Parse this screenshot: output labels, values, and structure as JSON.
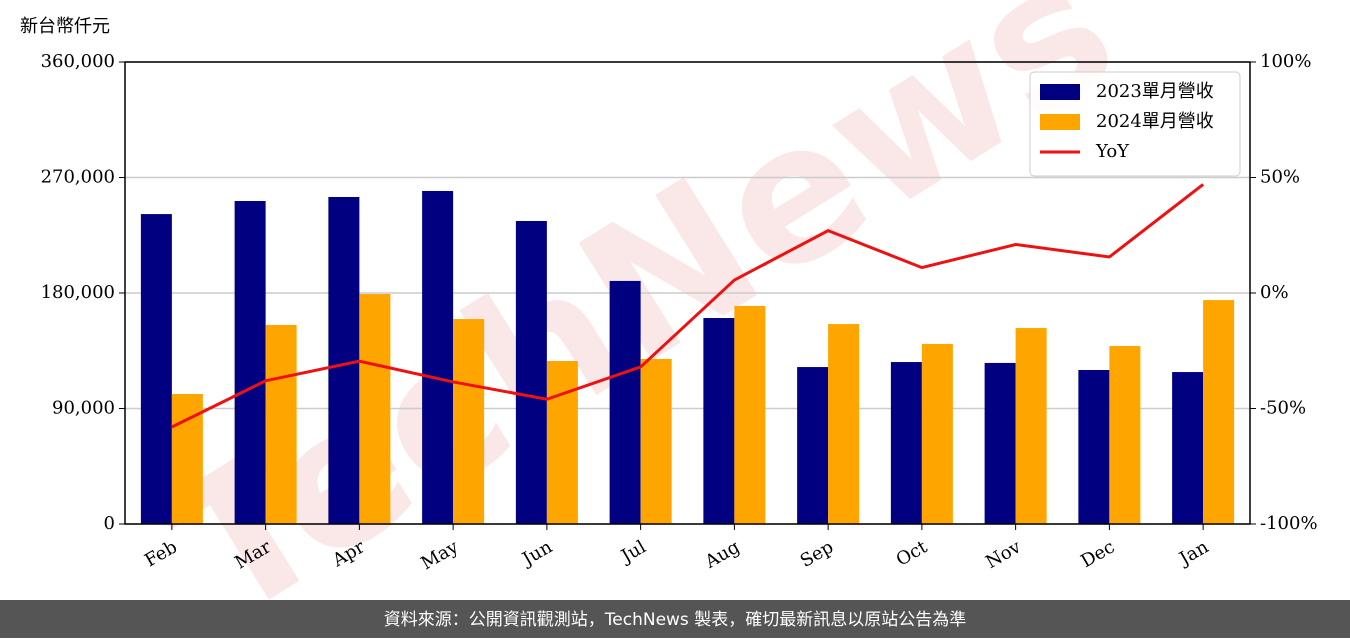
{
  "chart_data": {
    "type": "bar",
    "ylabel": "新台幣仟元",
    "watermark": "TechNews",
    "source": "資料來源：公開資訊觀測站，TechNews 製表，確切最新訊息以原站公告為準",
    "categories": [
      "Feb",
      "Mar",
      "Apr",
      "May",
      "Jun",
      "Jul",
      "Aug",
      "Sep",
      "Oct",
      "Nov",
      "Dec",
      "Jan"
    ],
    "series": [
      {
        "name": "2023單月營收",
        "type": "bar",
        "color": "#000080",
        "values": [
          241500,
          251700,
          254800,
          259500,
          236100,
          189400,
          160500,
          122300,
          126200,
          125500,
          120000,
          118400
        ]
      },
      {
        "name": "2024單月營收",
        "type": "bar",
        "color": "#ffa500",
        "values": [
          101300,
          155100,
          179200,
          159700,
          127000,
          128600,
          169900,
          155800,
          140300,
          152700,
          138700,
          174500
        ]
      },
      {
        "name": "YoY",
        "type": "line",
        "axis": "y2",
        "color": "#ee1111",
        "values": [
          -58,
          -38,
          -29.5,
          -38.5,
          -46,
          -32,
          5.6,
          27,
          11,
          21,
          15.6,
          47
        ]
      }
    ],
    "ylim": [
      0,
      360000
    ],
    "yticks": [
      0,
      {
        "value": 90000,
        "label": "90,000"
      },
      {
        "value": 180000,
        "label": "180,000"
      },
      {
        "value": 270000,
        "label": "270,000"
      },
      {
        "value": 360000,
        "label": "360,000"
      }
    ],
    "y2lim": [
      -100,
      100
    ],
    "y2ticks": [
      {
        "value": -100,
        "label": "-100%"
      },
      {
        "value": -50,
        "label": "-50%"
      },
      {
        "value": 0,
        "label": "0%"
      },
      {
        "value": 50,
        "label": "50%"
      },
      {
        "value": 100,
        "label": "100%"
      }
    ],
    "grid": true,
    "legend": "upper right"
  }
}
